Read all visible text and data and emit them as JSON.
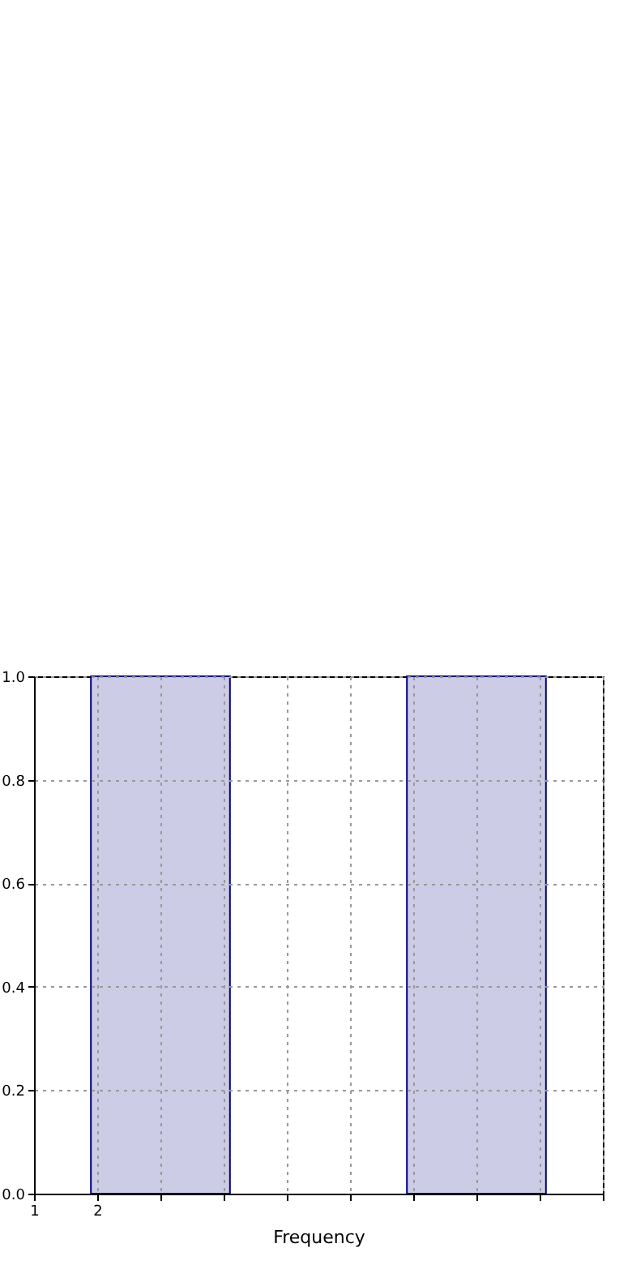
{
  "chart_data": {
    "type": "line",
    "xlabel": "Frequency",
    "xlim": [
      1,
      10
    ],
    "xticks": [
      1,
      2,
      {
        "value": 3,
        "label": null
      },
      {
        "value": 4,
        "label": null
      },
      {
        "value": 5,
        "label": null
      },
      {
        "value": 6,
        "label": null
      },
      {
        "value": 7,
        "label": null
      },
      {
        "value": 8,
        "label": null
      },
      {
        "value": 9,
        "label": null
      },
      {
        "value": 10,
        "label": null
      }
    ],
    "ylim": [
      0,
      1
    ],
    "yticks": [
      {
        "value": 0,
        "label": "0.0"
      },
      {
        "value": 0.2,
        "label": "0.2"
      },
      {
        "value": 0.4,
        "label": "0.4"
      },
      {
        "value": 0.6,
        "label": "0.6"
      },
      {
        "value": 0.8,
        "label": "0.8"
      },
      {
        "value": 1,
        "label": "1.0"
      }
    ],
    "bands": [
      {
        "axis": "x",
        "from": 1.9,
        "to": 4.1,
        "color": "#ccccE6"
      },
      {
        "axis": "x",
        "from": 6.9,
        "to": 9.1,
        "color": "#ccccE6"
      }
    ],
    "grid": true
  }
}
